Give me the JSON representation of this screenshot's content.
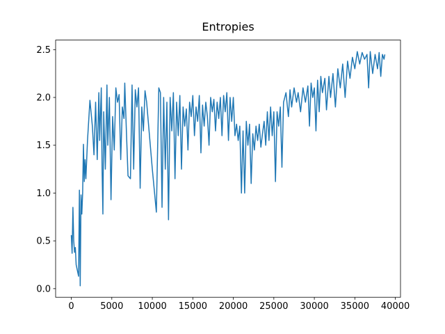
{
  "chart_data": {
    "type": "line",
    "title": "Entropies",
    "x": [
      0,
      100,
      200,
      300,
      400,
      500,
      600,
      800,
      900,
      1000,
      1100,
      1200,
      1300,
      1400,
      1500,
      1600,
      1700,
      1800,
      2000,
      2300,
      2600,
      2800,
      3000,
      3200,
      3400,
      3500,
      3700,
      3800,
      3900,
      4000,
      4200,
      4400,
      4500,
      4700,
      4900,
      5100,
      5300,
      5500,
      5700,
      5900,
      6100,
      6300,
      6500,
      6600,
      6800,
      7000,
      7300,
      7500,
      7700,
      7900,
      8100,
      8300,
      8500,
      8700,
      8900,
      9100,
      9300,
      9500,
      10000,
      10500,
      10800,
      11000,
      11200,
      11400,
      11600,
      11800,
      12000,
      12200,
      12400,
      12600,
      12800,
      13000,
      13200,
      13400,
      13600,
      13800,
      14000,
      14200,
      14400,
      14600,
      14800,
      15000,
      15200,
      15400,
      15600,
      15800,
      16000,
      16200,
      16400,
      16600,
      16800,
      17000,
      17200,
      17400,
      17600,
      17800,
      18000,
      18200,
      18400,
      18600,
      18800,
      19000,
      19200,
      19400,
      19600,
      19800,
      20000,
      20200,
      20400,
      20600,
      20800,
      21000,
      21200,
      21400,
      21600,
      21800,
      22000,
      22200,
      22400,
      22600,
      22800,
      23000,
      23200,
      23400,
      23600,
      23800,
      24000,
      24200,
      24400,
      24600,
      24800,
      25000,
      25200,
      25400,
      25600,
      25800,
      26000,
      26200,
      26500,
      26800,
      27000,
      27200,
      27500,
      27800,
      28000,
      28300,
      28600,
      28900,
      29200,
      29400,
      29600,
      29800,
      30000,
      30200,
      30400,
      30600,
      30800,
      31000,
      31300,
      31500,
      31800,
      32000,
      32300,
      32600,
      32900,
      33200,
      33500,
      33800,
      34100,
      34400,
      34700,
      35000,
      35300,
      35600,
      35900,
      36200,
      36500,
      36700,
      36900,
      37200,
      37500,
      37800,
      38000,
      38200,
      38400,
      38600,
      38700
    ],
    "series": [
      {
        "color": "#1f77b4",
        "values": [
          0.56,
          0.37,
          0.85,
          0.5,
          0.38,
          0.43,
          0.25,
          0.17,
          0.13,
          1.03,
          0.03,
          0.98,
          0.78,
          1.0,
          1.51,
          1.12,
          1.35,
          1.15,
          1.55,
          1.97,
          1.7,
          1.4,
          1.95,
          1.35,
          2.05,
          1.55,
          2.1,
          1.25,
          0.78,
          1.85,
          1.25,
          2.13,
          1.5,
          2.0,
          0.93,
          1.8,
          1.45,
          2.1,
          1.95,
          2.03,
          1.35,
          1.9,
          1.78,
          2.15,
          1.65,
          1.18,
          1.15,
          2.13,
          1.25,
          2.08,
          1.9,
          2.1,
          1.05,
          1.9,
          1.65,
          2.07,
          1.95,
          1.75,
          1.25,
          0.8,
          2.1,
          2.05,
          0.85,
          2.0,
          1.25,
          1.95,
          0.72,
          2.0,
          1.65,
          2.05,
          1.15,
          1.95,
          1.6,
          2.02,
          1.25,
          1.9,
          1.7,
          1.88,
          1.45,
          1.95,
          1.8,
          2.02,
          1.6,
          1.9,
          1.75,
          2.02,
          1.42,
          1.92,
          1.7,
          1.95,
          1.8,
          1.5,
          2.0,
          1.85,
          1.98,
          1.65,
          1.95,
          1.78,
          2.0,
          1.6,
          2.02,
          1.85,
          2.05,
          1.55,
          2.0,
          1.75,
          2.0,
          1.6,
          1.72,
          1.55,
          1.7,
          1.0,
          1.65,
          1.0,
          1.75,
          1.5,
          1.72,
          1.1,
          1.62,
          1.45,
          1.7,
          1.55,
          1.72,
          1.48,
          1.62,
          1.75,
          1.5,
          1.85,
          1.55,
          1.9,
          1.6,
          1.85,
          1.12,
          1.85,
          1.7,
          1.9,
          1.27,
          1.95,
          2.05,
          1.8,
          2.08,
          1.9,
          2.1,
          1.95,
          2.05,
          1.85,
          2.1,
          1.95,
          2.12,
          1.7,
          2.15,
          2.0,
          2.1,
          1.65,
          2.18,
          1.85,
          2.22,
          2.05,
          2.2,
          1.87,
          2.22,
          2.0,
          2.25,
          1.9,
          2.3,
          2.1,
          2.35,
          2.0,
          2.38,
          2.2,
          2.42,
          2.3,
          2.48,
          2.35,
          2.47,
          2.4,
          2.45,
          2.1,
          2.48,
          2.25,
          2.45,
          2.3,
          2.47,
          2.22,
          2.45,
          2.4,
          2.45
        ]
      }
    ],
    "xlim": [
      -1935,
      40635
    ],
    "ylim": [
      -0.09,
      2.6
    ],
    "xticks": [
      0,
      5000,
      10000,
      15000,
      20000,
      25000,
      30000,
      35000,
      40000
    ],
    "yticks": [
      {
        "value": 0,
        "label": "0.0"
      },
      {
        "value": 0.5,
        "label": "0.5"
      },
      {
        "value": 1,
        "label": "1.0"
      },
      {
        "value": 1.5,
        "label": "1.5"
      },
      {
        "value": 2,
        "label": "2.0"
      },
      {
        "value": 2.5,
        "label": "2.5"
      }
    ]
  }
}
